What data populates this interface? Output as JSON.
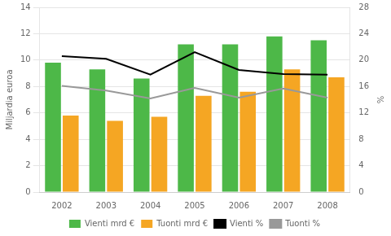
{
  "chart_data": {
    "type": "bar",
    "categories": [
      "2002",
      "2003",
      "2004",
      "2005",
      "2006",
      "2007",
      "2008"
    ],
    "series": [
      {
        "name": "Vienti mrd €",
        "color": "#4db848",
        "values": [
          9.8,
          9.3,
          8.6,
          11.2,
          11.2,
          11.8,
          11.5
        ]
      },
      {
        "name": "Tuonti mrd €",
        "color": "#f5a623",
        "values": [
          5.8,
          5.4,
          5.7,
          7.3,
          7.6,
          9.3,
          8.7
        ]
      },
      {
        "name": "Vienti %",
        "type": "line",
        "axis": "y2",
        "marker": "none",
        "color": "#000000",
        "values": [
          20.6,
          20.2,
          17.8,
          21.2,
          18.5,
          17.9,
          17.8
        ]
      },
      {
        "name": "Tuonti %",
        "type": "line",
        "axis": "y2",
        "marker": "none",
        "color": "#999999",
        "values": [
          16.1,
          15.4,
          14.2,
          15.8,
          14.3,
          15.7,
          14.3
        ]
      }
    ],
    "ylabel": "Miljardia euroa",
    "y2label": "%",
    "ylim": [
      0,
      14
    ],
    "yticks": [
      0,
      2,
      4,
      6,
      8,
      10,
      12,
      14
    ],
    "y2lim": [
      0,
      28
    ],
    "y2ticks": [
      0,
      4,
      8,
      12,
      16,
      20,
      24,
      28
    ],
    "grid": true,
    "legend": "bottom"
  }
}
